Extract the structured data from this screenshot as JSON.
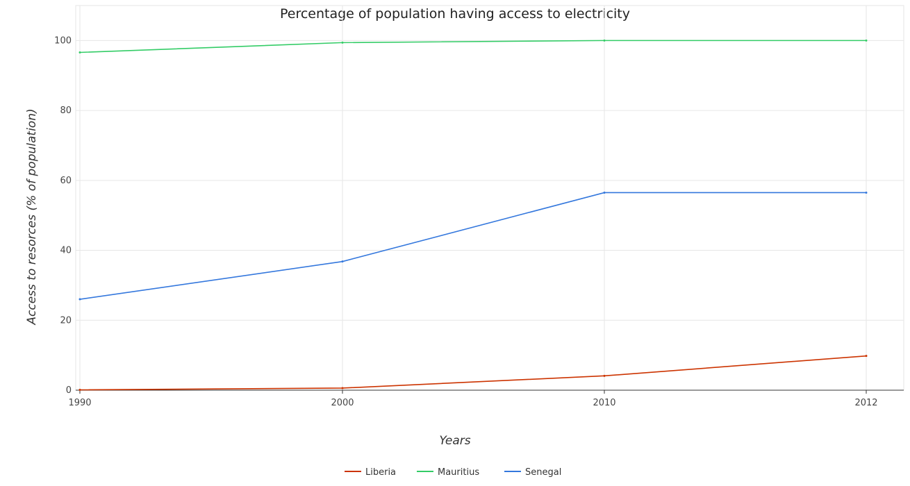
{
  "chart_data": {
    "type": "line",
    "title": "Percentage of population having access to electricity",
    "xlabel": "Years",
    "ylabel": "Access to resorces (% of population)",
    "categories": [
      "1990",
      "2000",
      "2010",
      "2012"
    ],
    "ylim": [
      0,
      110
    ],
    "yticks": [
      "0",
      "20",
      "40",
      "60",
      "80",
      "100"
    ],
    "grid": true,
    "legend_position": "bottom-center",
    "series": [
      {
        "name": "Liberia",
        "color": "#cc3300",
        "values": [
          0.1,
          0.6,
          4.1,
          9.8
        ]
      },
      {
        "name": "Mauritius",
        "color": "#33cc66",
        "values": [
          96.6,
          99.4,
          100,
          100
        ]
      },
      {
        "name": "Senegal",
        "color": "#3377dd",
        "values": [
          26.0,
          36.8,
          56.5,
          56.5
        ]
      }
    ]
  }
}
